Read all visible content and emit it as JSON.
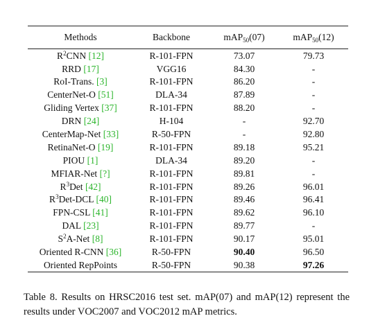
{
  "table": {
    "headers": {
      "methods": "Methods",
      "backbone": "Backbone",
      "voc07_prefix": "mAP",
      "voc07_sub": "50",
      "voc07_suffix": "(07)",
      "voc12_prefix": "mAP",
      "voc12_sub": "50",
      "voc12_suffix": "(12)"
    },
    "rows": [
      {
        "pre": "R",
        "sup": "2",
        "name": "CNN",
        "cite": "12",
        "backbone": "R-101-FPN",
        "v07": "73.07",
        "v12": "79.73"
      },
      {
        "pre": "",
        "sup": "",
        "name": "RRD",
        "cite": "17",
        "backbone": "VGG16",
        "v07": "84.30",
        "v12": "-"
      },
      {
        "pre": "",
        "sup": "",
        "name": "RoI-Trans.",
        "cite": "3",
        "backbone": "R-101-FPN",
        "v07": "86.20",
        "v12": "-"
      },
      {
        "pre": "",
        "sup": "",
        "name": "CenterNet-O",
        "cite": "51",
        "backbone": "DLA-34",
        "v07": "87.89",
        "v12": "-"
      },
      {
        "pre": "",
        "sup": "",
        "name": "Gliding Vertex",
        "cite": "37",
        "backbone": "R-101-FPN",
        "v07": "88.20",
        "v12": "-"
      },
      {
        "pre": "",
        "sup": "",
        "name": "DRN",
        "cite": "24",
        "backbone": "H-104",
        "v07": "-",
        "v12": "92.70"
      },
      {
        "pre": "",
        "sup": "",
        "name": "CenterMap-Net",
        "cite": "33",
        "backbone": "R-50-FPN",
        "v07": "-",
        "v12": "92.80"
      },
      {
        "pre": "",
        "sup": "",
        "name": "RetinaNet-O",
        "cite": "19",
        "backbone": "R-101-FPN",
        "v07": "89.18",
        "v12": "95.21"
      },
      {
        "pre": "",
        "sup": "",
        "name": "PIOU",
        "cite": "1",
        "backbone": "DLA-34",
        "v07": "89.20",
        "v12": "-"
      },
      {
        "pre": "",
        "sup": "",
        "name": "MFIAR-Net",
        "cite": "?",
        "backbone": "R-101-FPN",
        "v07": "89.81",
        "v12": "-"
      },
      {
        "pre": "R",
        "sup": "3",
        "name": "Det",
        "cite": "42",
        "backbone": "R-101-FPN",
        "v07": "89.26",
        "v12": "96.01"
      },
      {
        "pre": "R",
        "sup": "3",
        "name": "Det-DCL",
        "cite": "40",
        "backbone": "R-101-FPN",
        "v07": "89.46",
        "v12": "96.41"
      },
      {
        "pre": "",
        "sup": "",
        "name": "FPN-CSL",
        "cite": "41",
        "backbone": "R-101-FPN",
        "v07": "89.62",
        "v12": "96.10"
      },
      {
        "pre": "",
        "sup": "",
        "name": "DAL",
        "cite": "23",
        "backbone": "R-101-FPN",
        "v07": "89.77",
        "v12": "-"
      },
      {
        "pre": "S",
        "sup": "2",
        "name": "A-Net",
        "cite": "8",
        "backbone": "R-101-FPN",
        "v07": "90.17",
        "v12": "95.01"
      },
      {
        "pre": "",
        "sup": "",
        "name": "Oriented R-CNN",
        "cite": "36",
        "backbone": "R-50-FPN",
        "v07": "90.40",
        "v12": "96.50",
        "bold07": true
      },
      {
        "pre": "",
        "sup": "",
        "name": "Oriented RepPoints",
        "cite": "",
        "backbone": "R-50-FPN",
        "v07": "90.38",
        "v12": "97.26",
        "bold12": true
      }
    ]
  },
  "caption": {
    "text": "Table 8. Results on HRSC2016 test set. mAP(07) and mAP(12) represent the results under VOC2007 and VOC2012 mAP metrics."
  }
}
